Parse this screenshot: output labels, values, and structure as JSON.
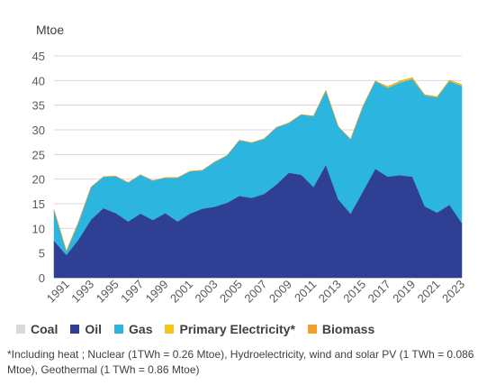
{
  "chart_data": {
    "type": "area",
    "stacked": true,
    "unit_label": "Mtoe",
    "title": "",
    "xlabel": "",
    "ylabel": "Mtoe",
    "ylim": [
      0,
      45
    ],
    "yticks": [
      0,
      5,
      10,
      15,
      20,
      25,
      30,
      35,
      40,
      45
    ],
    "x": [
      1990,
      1991,
      1992,
      1993,
      1994,
      1995,
      1996,
      1997,
      1998,
      1999,
      2000,
      2001,
      2002,
      2003,
      2004,
      2005,
      2006,
      2007,
      2008,
      2009,
      2010,
      2011,
      2012,
      2013,
      2014,
      2015,
      2016,
      2017,
      2018,
      2019,
      2020,
      2021,
      2022,
      2023
    ],
    "xtick_labels": [
      "1991",
      "1993",
      "1995",
      "1997",
      "1999",
      "2001",
      "2003",
      "2005",
      "2007",
      "2009",
      "2011",
      "2013",
      "2015",
      "2017",
      "2019",
      "2021",
      "2023"
    ],
    "grid": true,
    "legend_position": "bottom",
    "series": [
      {
        "name": "Coal",
        "color": "#d9d9d9",
        "values": [
          0,
          0,
          0,
          0,
          0,
          0,
          0,
          0,
          0,
          0,
          0,
          0,
          0,
          0,
          0,
          0,
          0,
          0,
          0,
          0,
          0,
          0,
          0,
          0,
          0,
          0,
          0,
          0,
          0,
          0,
          0,
          0,
          0,
          0
        ]
      },
      {
        "name": "Oil",
        "color": "#2e3f94",
        "values": [
          7.5,
          4.6,
          7.8,
          11.8,
          14.1,
          13.1,
          11.4,
          13.0,
          11.7,
          13.1,
          11.4,
          13.0,
          14.0,
          14.4,
          15.2,
          16.6,
          16.2,
          17.0,
          18.9,
          21.3,
          20.9,
          18.4,
          22.9,
          15.9,
          13.0,
          17.5,
          22.1,
          20.5,
          20.8,
          20.5,
          14.5,
          13.2,
          14.8,
          11.1
        ]
      },
      {
        "name": "Gas",
        "color": "#2cb5de",
        "values": [
          6.3,
          0.8,
          3.6,
          6.6,
          6.4,
          7.5,
          7.9,
          7.9,
          8.0,
          7.2,
          8.9,
          8.6,
          7.8,
          9.1,
          9.6,
          11.3,
          11.2,
          11.2,
          11.6,
          10.1,
          12.2,
          14.4,
          15.1,
          14.8,
          15.1,
          17.3,
          17.8,
          18.0,
          18.8,
          19.8,
          22.5,
          23.4,
          25.1,
          27.8
        ]
      },
      {
        "name": "Primary Electricity*",
        "color": "#f5c518",
        "values": [
          0,
          0,
          0,
          0,
          0,
          0,
          0,
          0,
          0,
          0,
          0,
          0,
          0,
          0,
          0,
          0,
          0,
          0,
          0,
          0,
          0,
          0,
          0,
          0,
          0,
          0,
          0,
          0.2,
          0.2,
          0.2,
          0.1,
          0.1,
          0.15,
          0.25
        ]
      },
      {
        "name": "Biomass",
        "color": "#f0a030",
        "values": [
          0,
          0,
          0,
          0,
          0,
          0,
          0,
          0,
          0,
          0,
          0,
          0,
          0,
          0,
          0,
          0,
          0,
          0,
          0,
          0,
          0,
          0,
          0,
          0,
          0,
          0,
          0.05,
          0.1,
          0.1,
          0.1,
          0.05,
          0.05,
          0.05,
          0.05
        ]
      }
    ]
  },
  "footnote": "*Including heat ; Nuclear (1TWh = 0.26 Mtoe), Hydroelectricity, wind and solar PV (1 TWh = 0.086 Mtoe), Geothermal (1 TWh = 0.86 Mtoe)"
}
